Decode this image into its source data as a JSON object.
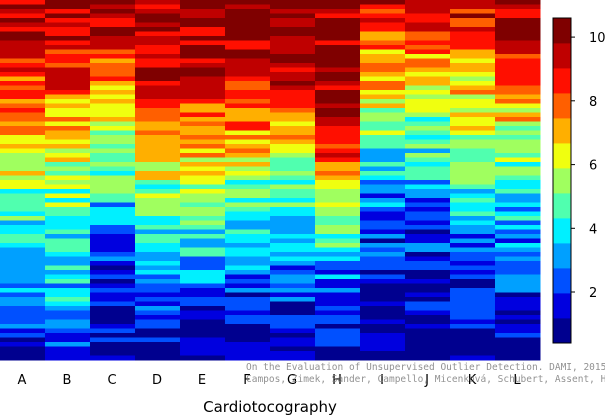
{
  "chart_data": {
    "type": "heatmap",
    "title": "",
    "xlabel": "Cardiotocography",
    "ylabel": "",
    "categories": [
      "A",
      "B",
      "C",
      "D",
      "E",
      "F",
      "G",
      "H",
      "I",
      "J",
      "K",
      "L"
    ],
    "n_rows": 80,
    "column_profiles": [
      [
        [
          10,
          10
        ],
        [
          9,
          8
        ],
        [
          7,
          6
        ],
        [
          5,
          4
        ],
        [
          3,
          3
        ],
        [
          1,
          1
        ]
      ],
      [
        [
          10,
          10
        ],
        [
          9,
          8
        ],
        [
          7,
          6
        ],
        [
          5,
          4
        ],
        [
          4,
          3
        ],
        [
          2,
          1
        ]
      ],
      [
        [
          10,
          10
        ],
        [
          8,
          7
        ],
        [
          6,
          5
        ],
        [
          4,
          3
        ],
        [
          2,
          1
        ],
        [
          1,
          1
        ]
      ],
      [
        [
          10,
          10
        ],
        [
          10,
          9
        ],
        [
          7,
          6
        ],
        [
          5,
          4
        ],
        [
          3,
          2
        ],
        [
          1,
          1
        ]
      ],
      [
        [
          10,
          10
        ],
        [
          10,
          9
        ],
        [
          8,
          6
        ],
        [
          5,
          4
        ],
        [
          3,
          2
        ],
        [
          1,
          1
        ]
      ],
      [
        [
          10,
          10
        ],
        [
          10,
          9
        ],
        [
          8,
          6
        ],
        [
          5,
          3
        ],
        [
          2,
          2
        ],
        [
          1,
          1
        ]
      ],
      [
        [
          10,
          10
        ],
        [
          10,
          9
        ],
        [
          7,
          6
        ],
        [
          5,
          3
        ],
        [
          2,
          2
        ],
        [
          1,
          1
        ]
      ],
      [
        [
          10,
          10
        ],
        [
          10,
          10
        ],
        [
          10,
          8
        ],
        [
          6,
          4
        ],
        [
          3,
          2
        ],
        [
          1,
          1
        ]
      ],
      [
        [
          9,
          9
        ],
        [
          8,
          6
        ],
        [
          5,
          4
        ],
        [
          3,
          2
        ],
        [
          2,
          1
        ],
        [
          1,
          1
        ]
      ],
      [
        [
          10,
          9
        ],
        [
          7,
          6
        ],
        [
          5,
          4
        ],
        [
          3,
          2
        ],
        [
          2,
          1
        ],
        [
          1,
          1
        ]
      ],
      [
        [
          10,
          9
        ],
        [
          8,
          6
        ],
        [
          6,
          5
        ],
        [
          4,
          3
        ],
        [
          2,
          2
        ],
        [
          1,
          1
        ]
      ],
      [
        [
          10,
          10
        ],
        [
          9,
          8
        ],
        [
          6,
          5
        ],
        [
          4,
          3
        ],
        [
          2,
          2
        ],
        [
          1,
          1
        ]
      ]
    ],
    "jitter": 0.3,
    "colorbar": {
      "min": 0.4,
      "max": 10.6,
      "ticks": [
        2,
        4,
        6,
        8,
        10
      ],
      "colors": [
        "#00008f",
        "#0000df",
        "#0050ff",
        "#00a0ff",
        "#00f0ff",
        "#50ffaf",
        "#a0ff5f",
        "#f0ff0f",
        "#ffaf00",
        "#ff5f00",
        "#ff0f00",
        "#bf0000",
        "#7f0000"
      ]
    }
  },
  "credit": {
    "line1": "On the Evaluation of Unsupervised Outlier Detection. DAMI, 2015.",
    "line2": "Campos, Zimek, Sander, Campello, Micenková, Schubert, Assent, Houle"
  }
}
